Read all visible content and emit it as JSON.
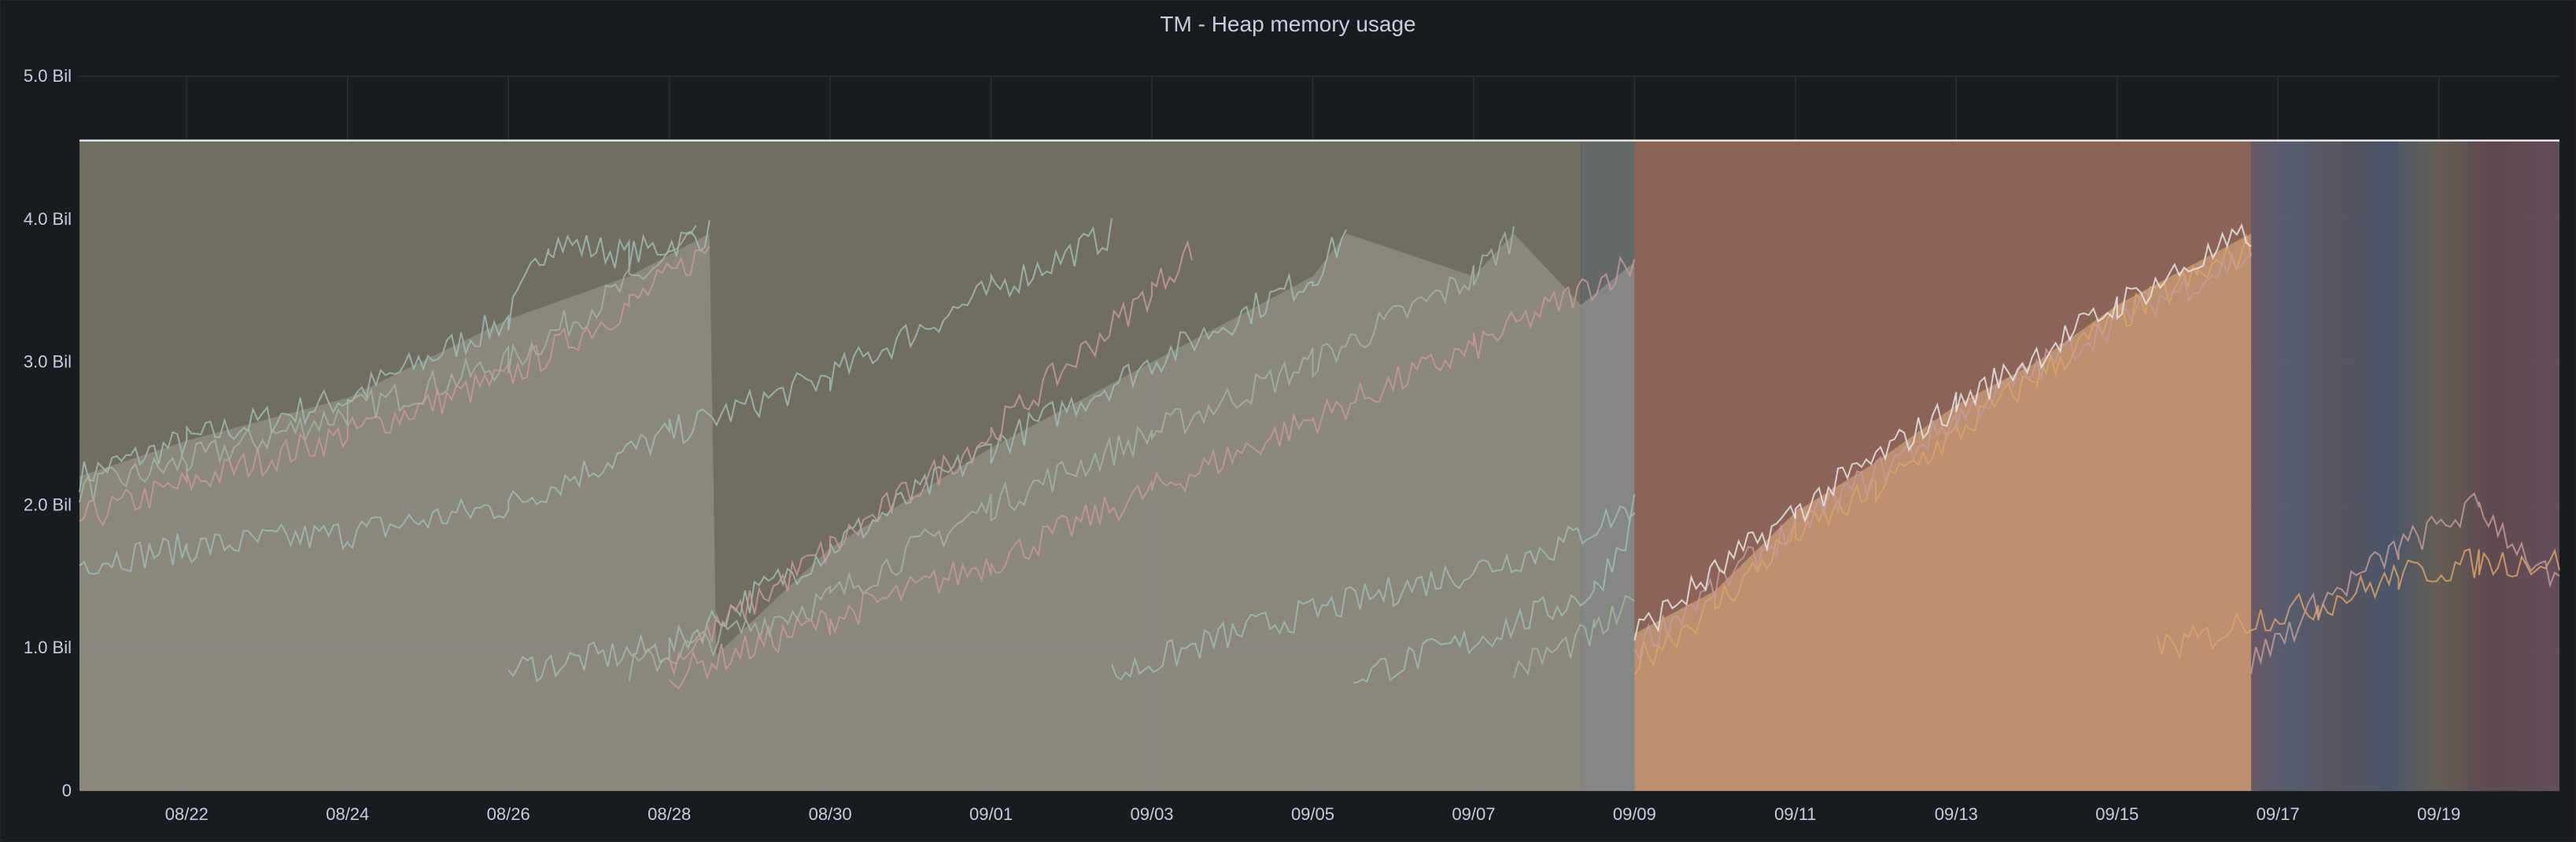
{
  "panel": {
    "title": "TM - Heap memory usage"
  },
  "colors": {
    "background": "#181b1f",
    "grid": "#2c2e33",
    "text": "#ccccdc",
    "fill_gray": "#8f8c83",
    "fill_olive": "#7a7467",
    "fill_orange": "#c49675",
    "fill_brick": "#97695c",
    "line_teal": "#9fbcb4",
    "line_green": "#a2b69a",
    "line_pink": "#c69a9a",
    "line_orange": "#d9a467",
    "line_white": "#e6e6e6"
  },
  "chart_data": {
    "type": "area",
    "title": "TM - Heap memory usage",
    "xlabel": "",
    "ylabel": "",
    "stacked": false,
    "legend": "none",
    "grid": true,
    "xlim": [
      "08/20 16:00",
      "09/20 12:00"
    ],
    "ylim": [
      0,
      5.0
    ],
    "y_unit": "Bil",
    "y_ticks": [
      {
        "value": 0,
        "label": "0"
      },
      {
        "value": 1.0,
        "label": "1.0 Bil"
      },
      {
        "value": 2.0,
        "label": "2.0 Bil"
      },
      {
        "value": 3.0,
        "label": "3.0 Bil"
      },
      {
        "value": 4.0,
        "label": "4.0 Bil"
      },
      {
        "value": 5.0,
        "label": "5.0 Bil"
      }
    ],
    "x_ticks": [
      "08/22",
      "08/24",
      "08/26",
      "08/28",
      "08/30",
      "09/01",
      "09/03",
      "09/05",
      "09/07",
      "09/09",
      "09/11",
      "09/13",
      "09/15",
      "09/17",
      "09/19"
    ],
    "max_heap_line": {
      "name": "",
      "value": 4.55,
      "x": [
        "08/20 16:00",
        "09/20 12:00"
      ]
    },
    "max_heap_bands": [
      {
        "x": [
          "08/20 16:00",
          "09/08 08:00"
        ],
        "value": 4.55,
        "color": "olive"
      },
      {
        "x": [
          "09/08 08:00",
          "09/09 00:00"
        ],
        "value": 4.55,
        "color": "slate"
      },
      {
        "x": [
          "09/09 00:00",
          "09/16 16:00"
        ],
        "value": 4.55,
        "color": "brick"
      },
      {
        "x": [
          "09/16 16:00",
          "09/20 12:00"
        ],
        "value": 4.55,
        "color": "mixed"
      }
    ],
    "series": [
      {
        "color": "teal",
        "x": [
          "08/20 16:00",
          "08/22 00:00",
          "08/24 00:00",
          "08/26 00:00",
          "08/26 12:00",
          "08/27 12:00",
          "08/28 12:00"
        ],
        "values": [
          2.2,
          2.45,
          2.75,
          3.3,
          3.85,
          3.75,
          3.9
        ]
      },
      {
        "color": "green",
        "x": [
          "08/20 16:00",
          "08/22 00:00",
          "08/24 00:00",
          "08/26 00:00",
          "08/27 12:00",
          "08/28 08:00"
        ],
        "values": [
          2.1,
          2.3,
          2.65,
          3.0,
          3.55,
          3.85
        ]
      },
      {
        "color": "pink",
        "x": [
          "08/20 16:00",
          "08/22 00:00",
          "08/24 00:00",
          "08/26 00:00",
          "08/27 12:00",
          "08/28 12:00"
        ],
        "values": [
          1.9,
          2.15,
          2.5,
          2.9,
          3.4,
          3.8
        ]
      },
      {
        "color": "teal",
        "x": [
          "08/20 16:00",
          "08/22 00:00",
          "08/24 00:00",
          "08/26 00:00",
          "08/28 00:00",
          "08/30 00:00",
          "09/01 00:00",
          "09/02 12:00"
        ],
        "values": [
          1.6,
          1.7,
          1.8,
          2.0,
          2.5,
          2.9,
          3.5,
          3.9
        ]
      },
      {
        "color": "teal",
        "x": [
          "08/26 00:00",
          "08/28 00:00",
          "08/30 00:00",
          "09/01 00:00",
          "09/03 00:00",
          "09/05 00:00",
          "09/05 10:00"
        ],
        "values": [
          0.85,
          1.0,
          1.7,
          2.4,
          3.0,
          3.6,
          3.9
        ]
      },
      {
        "color": "green",
        "x": [
          "08/27 12:00",
          "08/30 00:00",
          "09/01 00:00",
          "09/03 00:00",
          "09/05 00:00",
          "09/07 00:00",
          "09/07 12:00"
        ],
        "values": [
          0.85,
          1.35,
          2.0,
          2.5,
          3.0,
          3.6,
          3.9
        ]
      },
      {
        "color": "pink",
        "x": [
          "08/28 00:00",
          "08/30 00:00",
          "09/01 00:00",
          "09/03 00:00",
          "09/05 00:00",
          "09/07 00:00",
          "09/09 00:00"
        ],
        "values": [
          0.8,
          1.2,
          1.6,
          2.1,
          2.6,
          3.1,
          3.7
        ]
      },
      {
        "color": "pink",
        "x": [
          "08/28 00:00",
          "08/30 00:00",
          "09/01 00:00",
          "09/03 00:00",
          "09/03 12:00"
        ],
        "values": [
          0.9,
          1.7,
          2.5,
          3.5,
          3.8
        ]
      },
      {
        "color": "teal",
        "x": [
          "09/02 12:00",
          "09/04 00:00",
          "09/06 00:00",
          "09/08 00:00",
          "09/09 00:00"
        ],
        "values": [
          0.8,
          1.1,
          1.4,
          1.7,
          2.0
        ]
      },
      {
        "color": "teal",
        "x": [
          "09/05 12:00",
          "09/07 00:00",
          "09/08 12:00",
          "09/09 00:00"
        ],
        "values": [
          0.8,
          1.05,
          1.4,
          1.9
        ]
      },
      {
        "color": "green",
        "x": [
          "09/07 12:00",
          "09/08 12:00",
          "09/09 00:00"
        ],
        "values": [
          0.85,
          1.1,
          1.3
        ]
      },
      {
        "color": "orange",
        "x": [
          "09/09 00:00",
          "09/10 00:00",
          "09/11 00:00",
          "09/12 00:00",
          "09/13 00:00",
          "09/14 00:00",
          "09/15 00:00",
          "09/16 00:00",
          "09/16 16:00"
        ],
        "values": [
          0.9,
          1.3,
          1.8,
          2.1,
          2.5,
          2.9,
          3.3,
          3.6,
          3.8
        ]
      },
      {
        "color": "pink",
        "x": [
          "09/09 00:00",
          "09/11 00:00",
          "09/13 00:00",
          "09/15 00:00",
          "09/16 16:00"
        ],
        "values": [
          1.0,
          1.85,
          2.6,
          3.3,
          3.75
        ]
      },
      {
        "color": "white",
        "x": [
          "09/09 00:00",
          "09/11 00:00",
          "09/13 00:00",
          "09/15 00:00",
          "09/16 16:00"
        ],
        "values": [
          1.1,
          1.95,
          2.7,
          3.4,
          3.9
        ]
      },
      {
        "color": "orange",
        "x": [
          "09/15 12:00",
          "09/16 00:00",
          "09/16 16:00",
          "09/17 12:00",
          "09/18 12:00",
          "09/19 12:00",
          "09/20 12:00"
        ],
        "values": [
          1.0,
          1.05,
          1.2,
          1.3,
          1.5,
          1.6,
          1.6
        ]
      },
      {
        "color": "pink",
        "x": [
          "09/16 16:00",
          "09/17 12:00",
          "09/18 12:00",
          "09/19 12:00",
          "09/20 12:00"
        ],
        "values": [
          0.9,
          1.3,
          1.7,
          2.0,
          1.4
        ]
      }
    ]
  }
}
